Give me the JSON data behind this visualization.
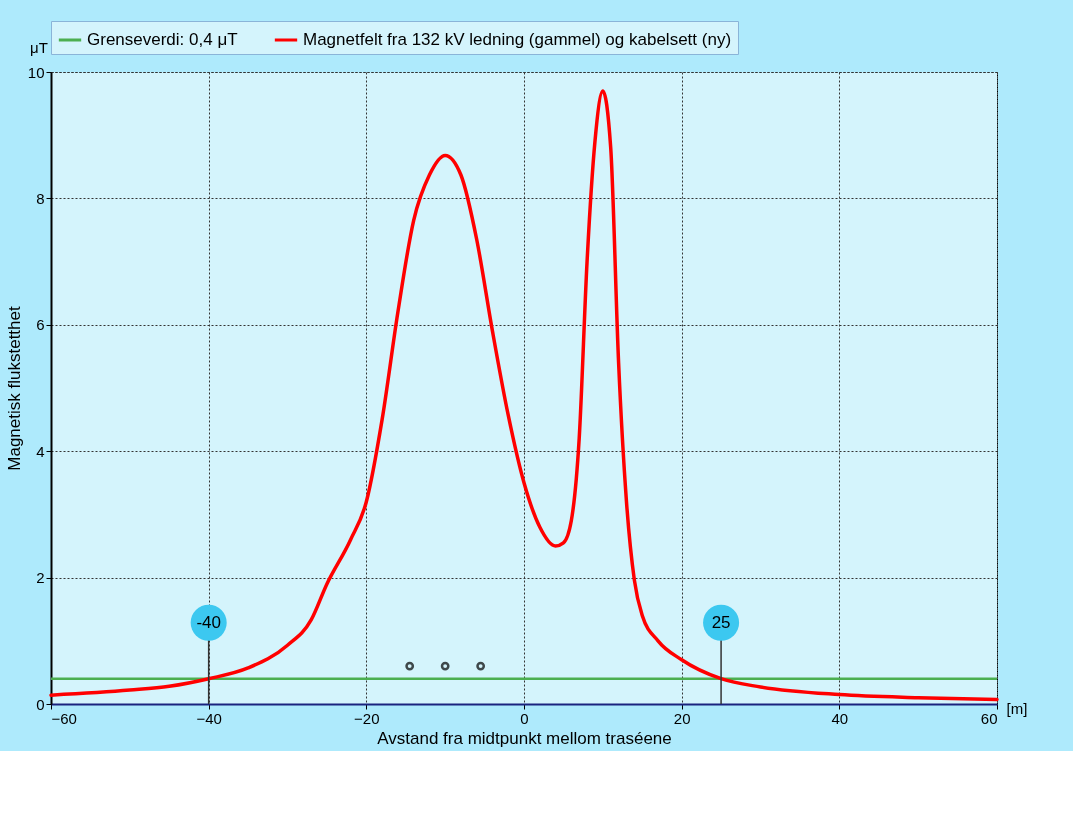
{
  "chart_data": {
    "type": "line",
    "xlabel": "Avstand fra midtpunkt mellom traséene",
    "ylabel": "Magnetisk flukstetthet",
    "xlim": [
      -60,
      60
    ],
    "ylim": [
      0,
      10
    ],
    "xticks": [
      -60,
      -40,
      -20,
      0,
      20,
      40,
      60
    ],
    "yticks": [
      0,
      2,
      4,
      6,
      8,
      10
    ],
    "grid": true,
    "legend": "top",
    "series": [
      {
        "name": "Magnetfelt fra 132 kV ledning (gammel) og kabelsett (ny)",
        "color": "#ff0000",
        "x": [
          -60,
          -50,
          -45,
          -40,
          -35,
          -30,
          -27,
          -25,
          -22,
          -20,
          -18,
          -16,
          -14,
          -12,
          -10,
          -8,
          -6,
          -4,
          -2,
          0,
          2,
          4,
          5,
          6,
          7,
          8,
          9,
          10,
          11,
          12,
          13,
          14,
          15,
          17,
          20,
          25,
          30,
          40,
          50,
          60
        ],
        "values": [
          0.14,
          0.22,
          0.28,
          0.4,
          0.57,
          0.93,
          1.33,
          1.9,
          2.6,
          3.2,
          4.5,
          6.2,
          7.65,
          8.37,
          8.68,
          8.37,
          7.35,
          5.9,
          4.57,
          3.5,
          2.8,
          2.5,
          2.55,
          2.9,
          4.2,
          7.0,
          8.9,
          9.7,
          8.8,
          5.4,
          3.2,
          1.96,
          1.4,
          1.0,
          0.7,
          0.4,
          0.27,
          0.15,
          0.1,
          0.07
        ]
      },
      {
        "type": "scatter",
        "color": "#000000",
        "x": [
          -14.5,
          -10,
          -5.5
        ],
        "values": [
          0.6,
          0.6,
          0.6
        ],
        "marker": "circle"
      }
    ],
    "ref_lines": [
      {
        "axis": "y",
        "value": 0.4,
        "label": "Grenseverdi: 0,4 μT",
        "color": "#4caf50"
      }
    ],
    "annotations": [
      {
        "text": "-40",
        "x": -40,
        "y": 0.4
      },
      {
        "text": "25",
        "x": 25,
        "y": 0.4
      },
      "μT",
      "[m]"
    ]
  }
}
